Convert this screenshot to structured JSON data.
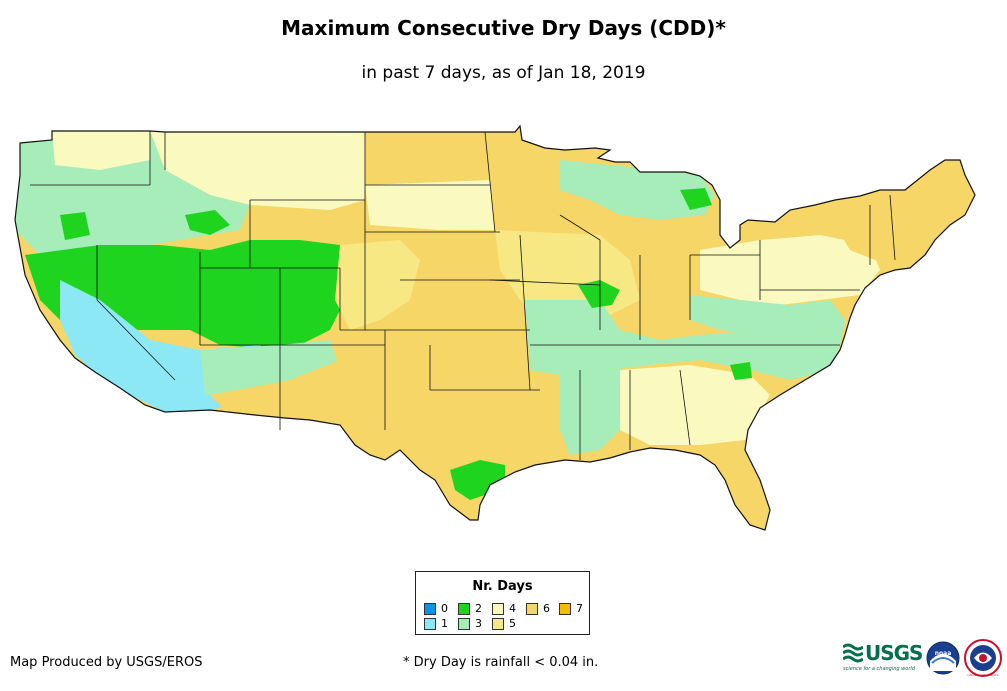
{
  "header": {
    "title": "Maximum Consecutive Dry Days (CDD)*",
    "subtitle": "in past 7 days, as of Jan 18, 2019"
  },
  "legend": {
    "title": "Nr. Days",
    "items": [
      {
        "label": "0",
        "color": "#0a94e8"
      },
      {
        "label": "1",
        "color": "#8de8f5"
      },
      {
        "label": "2",
        "color": "#1ed41e"
      },
      {
        "label": "3",
        "color": "#a6edb9"
      },
      {
        "label": "4",
        "color": "#fafac0"
      },
      {
        "label": "5",
        "color": "#f7e884"
      },
      {
        "label": "6",
        "color": "#f6d667"
      },
      {
        "label": "7",
        "color": "#f5bc00"
      }
    ]
  },
  "footer": {
    "credit": "Map Produced by USGS/EROS",
    "note": "* Dry Day is rainfall < 0.04 in."
  },
  "logos": {
    "usgs": "USGS",
    "usgs_tagline": "science for a changing world",
    "noaa": "noaa",
    "nws": "national weather service"
  }
}
